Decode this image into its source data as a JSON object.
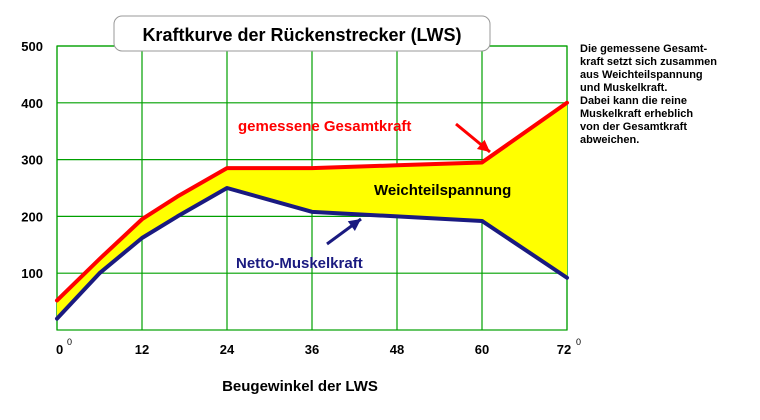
{
  "chart_data": {
    "type": "area",
    "title": "Kraftkurve der Rückenstrecker (LWS)",
    "xlabel": "Beugewinkel der LWS",
    "ylabel": "",
    "x_ticks": [
      "0",
      "12",
      "24",
      "36",
      "48",
      "60",
      "72"
    ],
    "x_tick_superscript": "0",
    "y_ticks": [
      "100",
      "200",
      "300",
      "400",
      "500"
    ],
    "xlim": [
      0,
      72
    ],
    "ylim": [
      0,
      500
    ],
    "grid": true,
    "series": [
      {
        "name": "gemessene Gesamtkraft",
        "color": "#ff0000",
        "x": [
          0,
          6,
          12,
          17,
          24,
          36,
          48,
          60,
          72
        ],
        "y": [
          52,
          125,
          195,
          235,
          285,
          285,
          290,
          295,
          400
        ]
      },
      {
        "name": "Netto-Muskelkraft",
        "color": "#1a1a80",
        "x": [
          0,
          6,
          12,
          17,
          24,
          36,
          48,
          60,
          72
        ],
        "y": [
          20,
          100,
          162,
          200,
          250,
          208,
          200,
          192,
          92
        ]
      }
    ],
    "area": {
      "label": "Weichteilspannung",
      "between": [
        "gemessene Gesamtkraft",
        "Netto-Muskelkraft"
      ],
      "color": "#ffff00"
    },
    "annotations": {
      "gesamt_label": "gemessene Gesamtkraft",
      "netto_label": "Netto-Muskelkraft",
      "area_label": "Weichteilspannung"
    }
  },
  "side_note": {
    "lines": [
      "Die gemessene Gesamt-",
      "kraft setzt sich zusammen",
      "aus Weichteilspannung",
      "und Muskelkraft.",
      "Dabei kann die reine",
      "Muskelkraft erheblich",
      "von der Gesamtkraft",
      "abweichen."
    ]
  },
  "colors": {
    "grid": "#00a000",
    "fill": "#ffff00",
    "gesamt": "#ff0000",
    "netto": "#1a1a80",
    "axis_text": "#000000"
  }
}
